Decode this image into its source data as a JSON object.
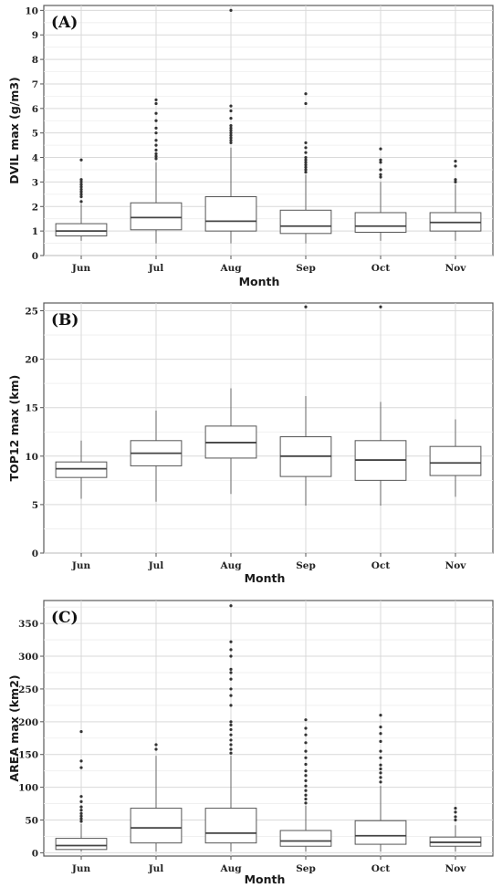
{
  "chart_data": [
    {
      "type": "box",
      "label": "(A)",
      "xlabel": "Month",
      "ylabel": "DVIL max (g/m3)",
      "categories": [
        "Jun",
        "Jul",
        "Aug",
        "Sep",
        "Oct",
        "Nov"
      ],
      "ylim": [
        0,
        10.2
      ],
      "yticks": [
        "0",
        "1",
        "2",
        "3",
        "4",
        "5",
        "6",
        "7",
        "8",
        "9",
        "10"
      ],
      "grid": true,
      "boxes": [
        {
          "whisker_low": 0.6,
          "q1": 0.8,
          "median": 1.0,
          "q3": 1.3,
          "whisker_high": 2.1,
          "outliers": [
            2.2,
            2.4,
            2.5,
            2.6,
            2.7,
            2.8,
            2.9,
            3.0,
            3.1,
            3.9
          ]
        },
        {
          "whisker_low": 0.5,
          "q1": 1.05,
          "median": 1.55,
          "q3": 2.15,
          "whisker_high": 3.8,
          "outliers": [
            3.95,
            4.05,
            4.15,
            4.3,
            4.5,
            4.7,
            5.0,
            5.2,
            5.5,
            5.8,
            6.2,
            6.35
          ]
        },
        {
          "whisker_low": 0.5,
          "q1": 1.0,
          "median": 1.4,
          "q3": 2.4,
          "whisker_high": 4.4,
          "outliers": [
            4.6,
            4.7,
            4.8,
            4.9,
            5.0,
            5.1,
            5.2,
            5.3,
            5.6,
            5.9,
            6.1,
            10.0
          ]
        },
        {
          "whisker_low": 0.5,
          "q1": 0.9,
          "median": 1.2,
          "q3": 1.85,
          "whisker_high": 3.3,
          "outliers": [
            3.4,
            3.5,
            3.6,
            3.7,
            3.8,
            3.9,
            4.0,
            4.2,
            4.4,
            4.6,
            6.2,
            6.6
          ]
        },
        {
          "whisker_low": 0.6,
          "q1": 0.95,
          "median": 1.2,
          "q3": 1.75,
          "whisker_high": 3.0,
          "outliers": [
            3.2,
            3.3,
            3.5,
            3.8,
            3.9,
            4.35
          ]
        },
        {
          "whisker_low": 0.6,
          "q1": 1.0,
          "median": 1.35,
          "q3": 1.75,
          "whisker_high": 2.9,
          "outliers": [
            3.0,
            3.1,
            3.65,
            3.85
          ]
        }
      ]
    },
    {
      "type": "box",
      "label": "(B)",
      "xlabel": "Month",
      "ylabel": "TOP12 max (km)",
      "categories": [
        "Jun",
        "Jul",
        "Aug",
        "Sep",
        "Oct",
        "Nov"
      ],
      "ylim": [
        0,
        25.8
      ],
      "yticks": [
        "0",
        "5",
        "10",
        "15",
        "20",
        "25"
      ],
      "grid": true,
      "boxes": [
        {
          "whisker_low": 5.6,
          "q1": 7.8,
          "median": 8.7,
          "q3": 9.4,
          "whisker_high": 11.6,
          "outliers": []
        },
        {
          "whisker_low": 5.3,
          "q1": 9.0,
          "median": 10.3,
          "q3": 11.6,
          "whisker_high": 14.7,
          "outliers": []
        },
        {
          "whisker_low": 6.1,
          "q1": 9.8,
          "median": 11.4,
          "q3": 13.1,
          "whisker_high": 17.0,
          "outliers": []
        },
        {
          "whisker_low": 4.9,
          "q1": 7.9,
          "median": 10.0,
          "q3": 12.0,
          "whisker_high": 16.2,
          "outliers": [
            25.4
          ]
        },
        {
          "whisker_low": 4.9,
          "q1": 7.5,
          "median": 9.6,
          "q3": 11.6,
          "whisker_high": 15.6,
          "outliers": [
            25.4
          ]
        },
        {
          "whisker_low": 5.8,
          "q1": 8.0,
          "median": 9.3,
          "q3": 11.0,
          "whisker_high": 13.8,
          "outliers": []
        }
      ]
    },
    {
      "type": "box",
      "label": "(C)",
      "xlabel": "Month",
      "ylabel": "AREA max (km2)",
      "categories": [
        "Jun",
        "Jul",
        "Aug",
        "Sep",
        "Oct",
        "Nov"
      ],
      "ylim": [
        -5,
        385
      ],
      "yticks": [
        "0",
        "50",
        "100",
        "150",
        "200",
        "250",
        "300",
        "350"
      ],
      "grid": true,
      "boxes": [
        {
          "whisker_low": 2,
          "q1": 5,
          "median": 11,
          "q3": 22,
          "whisker_high": 44,
          "outliers": [
            48,
            52,
            56,
            60,
            65,
            70,
            78,
            86,
            130,
            140,
            185
          ]
        },
        {
          "whisker_low": 2,
          "q1": 15,
          "median": 38,
          "q3": 68,
          "whisker_high": 148,
          "outliers": [
            158,
            165
          ]
        },
        {
          "whisker_low": 2,
          "q1": 15,
          "median": 30,
          "q3": 68,
          "whisker_high": 148,
          "outliers": [
            152,
            158,
            165,
            172,
            180,
            188,
            195,
            200,
            225,
            240,
            250,
            265,
            275,
            280,
            300,
            310,
            322,
            377
          ]
        },
        {
          "whisker_low": 2,
          "q1": 10,
          "median": 18,
          "q3": 34,
          "whisker_high": 72,
          "outliers": [
            76,
            82,
            88,
            95,
            102,
            110,
            118,
            125,
            135,
            145,
            155,
            168,
            180,
            190,
            203
          ]
        },
        {
          "whisker_low": 2,
          "q1": 13,
          "median": 26,
          "q3": 49,
          "whisker_high": 102,
          "outliers": [
            108,
            115,
            122,
            128,
            134,
            145,
            155,
            170,
            182,
            192,
            210
          ]
        },
        {
          "whisker_low": 2,
          "q1": 10,
          "median": 16,
          "q3": 24,
          "whisker_high": 42,
          "outliers": [
            50,
            55,
            62,
            68
          ]
        }
      ]
    }
  ]
}
